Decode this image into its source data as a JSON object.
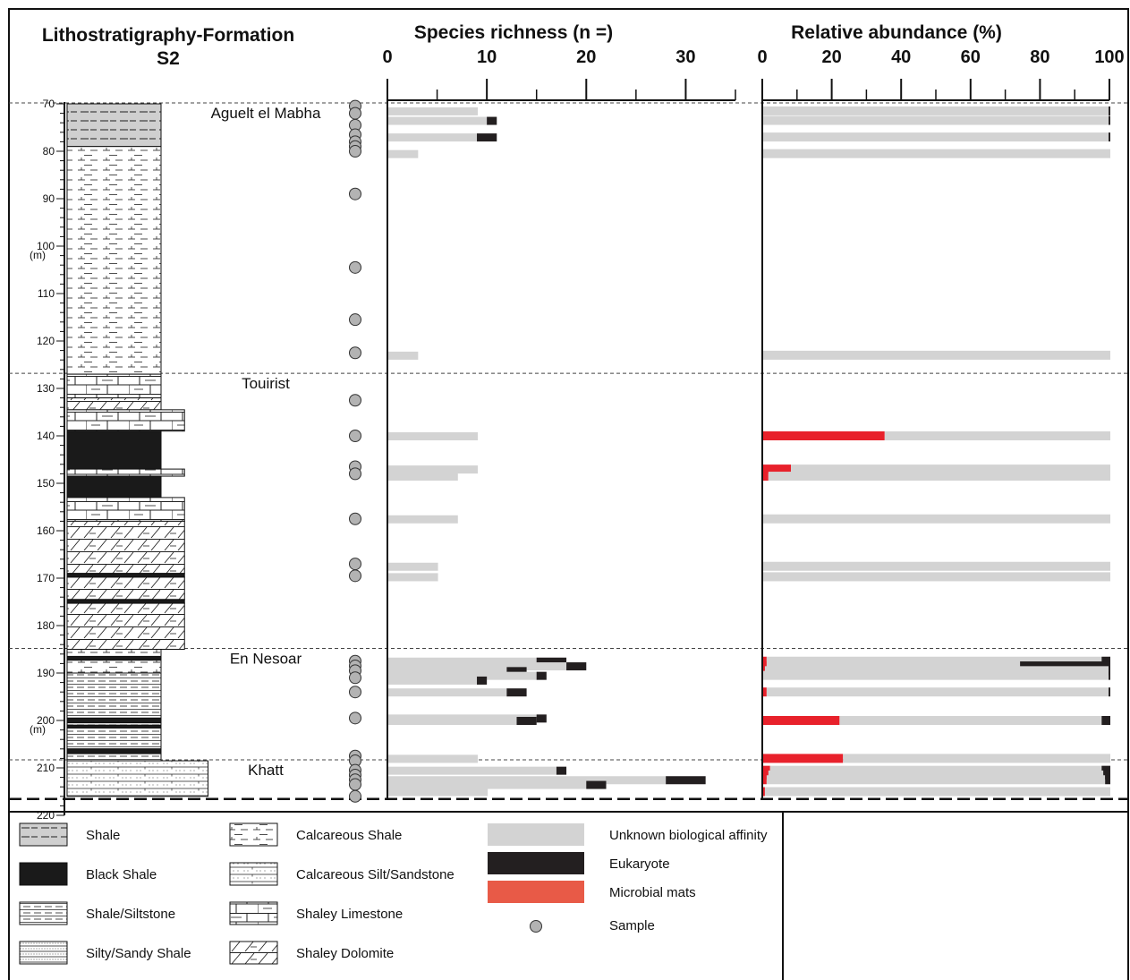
{
  "header": {
    "litho_title": "Lithostratigraphy-Formation",
    "section": "S2",
    "species_title": "Species richness (n =)",
    "abundance_title": "Relative abundance (%)"
  },
  "depth_axis": {
    "ticks": [
      "70",
      "80",
      "90",
      "100",
      "110",
      "120",
      "130",
      "140",
      "150",
      "160",
      "170",
      "180",
      "190",
      "200",
      "210",
      "220"
    ],
    "unit_labels": [
      {
        "at": 100,
        "text": "(m)"
      },
      {
        "at": 200,
        "text": "(m)"
      }
    ]
  },
  "colors": {
    "unknown": "#d3d3d3",
    "eukaryote": "#231f20",
    "microbial": "#e8212b",
    "microbial_legend": "#e85a47",
    "sample": "#b3b3b3"
  },
  "formations": [
    {
      "name": "Aguelt el Mabha",
      "top": 70
    },
    {
      "name": "Touirist",
      "top": 127
    },
    {
      "name": "En Nesoar",
      "top": 185
    },
    {
      "name": "Khatt",
      "top": 208.5
    }
  ],
  "formation_boundaries": [
    70,
    127,
    185,
    208.5
  ],
  "section_base": 216,
  "lithology": [
    {
      "top": 70,
      "bottom": 79,
      "type": "shale",
      "width": 1
    },
    {
      "top": 79,
      "bottom": 127,
      "type": "calcareous-shale",
      "width": 1
    },
    {
      "top": 127,
      "bottom": 132,
      "type": "shaley-limestone",
      "width": 1
    },
    {
      "top": 132,
      "bottom": 134.5,
      "type": "shaley-dolomite",
      "width": 1
    },
    {
      "top": 134.5,
      "bottom": 139,
      "type": "shaley-limestone",
      "width": 1.25
    },
    {
      "top": 139,
      "bottom": 147,
      "type": "black-shale",
      "width": 1
    },
    {
      "top": 147,
      "bottom": 148.5,
      "type": "shaley-limestone",
      "width": 1.25
    },
    {
      "top": 148.5,
      "bottom": 153,
      "type": "black-shale",
      "width": 1
    },
    {
      "top": 153,
      "bottom": 158,
      "type": "shaley-limestone",
      "width": 1.25
    },
    {
      "top": 158,
      "bottom": 169,
      "type": "shaley-dolomite",
      "width": 1.25
    },
    {
      "top": 169,
      "bottom": 169.8,
      "type": "black-shale",
      "width": 1.25
    },
    {
      "top": 169.8,
      "bottom": 174.5,
      "type": "shaley-dolomite",
      "width": 1.25
    },
    {
      "top": 174.5,
      "bottom": 175.3,
      "type": "black-shale",
      "width": 1.25
    },
    {
      "top": 175.3,
      "bottom": 185,
      "type": "shaley-dolomite",
      "width": 1.25
    },
    {
      "top": 185,
      "bottom": 186.5,
      "type": "calcareous-shale",
      "width": 1
    },
    {
      "top": 186.5,
      "bottom": 187.3,
      "type": "black-shale",
      "width": 1
    },
    {
      "top": 187.3,
      "bottom": 190,
      "type": "calcareous-shale",
      "width": 1
    },
    {
      "top": 190,
      "bottom": 199.5,
      "type": "shale-siltstone",
      "width": 1
    },
    {
      "top": 199.5,
      "bottom": 200.5,
      "type": "black-shale",
      "width": 1
    },
    {
      "top": 200.5,
      "bottom": 201,
      "type": "shale-siltstone",
      "width": 1
    },
    {
      "top": 201,
      "bottom": 201.6,
      "type": "black-shale",
      "width": 1
    },
    {
      "top": 201.6,
      "bottom": 206,
      "type": "shale-siltstone",
      "width": 1
    },
    {
      "top": 206,
      "bottom": 207,
      "type": "black-shale",
      "width": 1
    },
    {
      "top": 207,
      "bottom": 208.5,
      "type": "shale-siltstone",
      "width": 1
    },
    {
      "top": 208.5,
      "bottom": 216,
      "type": "calcareous-silt-sandstone",
      "width": 1.5
    }
  ],
  "chart_data": [
    {
      "type": "bar",
      "orientation": "horizontal",
      "title": "Species richness (n =)",
      "xlim": [
        0,
        35
      ],
      "x_ticks": [
        "0",
        "10",
        "20",
        "30"
      ],
      "ylim": [
        70,
        220
      ],
      "y_unit": "m",
      "series": [
        {
          "name": "Unknown biological affinity",
          "key": "unknown"
        },
        {
          "name": "Eukaryote",
          "key": "eukaryote"
        }
      ],
      "samples": [
        {
          "depth": 71.5,
          "unknown": 9,
          "eukaryote": 0
        },
        {
          "depth": 73.5,
          "unknown": 10,
          "eukaryote": 1
        },
        {
          "depth": 77,
          "unknown": 9,
          "eukaryote": 2
        },
        {
          "depth": 80.5,
          "unknown": 3,
          "eukaryote": 0
        },
        {
          "depth": 123,
          "unknown": 3,
          "eukaryote": 0
        },
        {
          "depth": 140,
          "unknown": 9,
          "eukaryote": 0
        },
        {
          "depth": 147,
          "unknown": 9,
          "eukaryote": 0
        },
        {
          "depth": 148.5,
          "unknown": 7,
          "eukaryote": 0
        },
        {
          "depth": 157.5,
          "unknown": 7,
          "eukaryote": 0
        },
        {
          "depth": 167.5,
          "unknown": 5,
          "eukaryote": 0
        },
        {
          "depth": 169.7,
          "unknown": 5,
          "eukaryote": 0
        },
        {
          "depth": 187.5,
          "unknown": 15,
          "eukaryote": 3
        },
        {
          "depth": 188.5,
          "unknown": 18,
          "eukaryote": 2
        },
        {
          "depth": 189.5,
          "unknown": 12,
          "eukaryote": 2
        },
        {
          "depth": 190.5,
          "unknown": 15,
          "eukaryote": 1
        },
        {
          "depth": 191.5,
          "unknown": 9,
          "eukaryote": 1
        },
        {
          "depth": 194,
          "unknown": 12,
          "eukaryote": 2
        },
        {
          "depth": 199.5,
          "unknown": 15,
          "eukaryote": 1
        },
        {
          "depth": 200,
          "unknown": 13,
          "eukaryote": 2
        },
        {
          "depth": 208,
          "unknown": 9,
          "eukaryote": 0
        },
        {
          "depth": 210.5,
          "unknown": 17,
          "eukaryote": 1
        },
        {
          "depth": 212.5,
          "unknown": 28,
          "eukaryote": 4
        },
        {
          "depth": 213.5,
          "unknown": 20,
          "eukaryote": 2
        },
        {
          "depth": 215,
          "unknown": 10,
          "eukaryote": 0
        }
      ]
    },
    {
      "type": "bar",
      "orientation": "horizontal",
      "stacked": true,
      "title": "Relative abundance (%)",
      "xlim": [
        0,
        100
      ],
      "x_ticks": [
        "0",
        "20",
        "40",
        "60",
        "80",
        "100"
      ],
      "ylim": [
        70,
        220
      ],
      "y_unit": "m",
      "series": [
        {
          "name": "Microbial mats",
          "key": "microbial"
        },
        {
          "name": "Unknown biological affinity",
          "key": "unknown"
        },
        {
          "name": "Eukaryote",
          "key": "eukaryote"
        }
      ],
      "samples": [
        {
          "depth": 71.5,
          "microbial": 0,
          "unknown": 99.5,
          "eukaryote": 0.5
        },
        {
          "depth": 73.5,
          "microbial": 0,
          "unknown": 99.5,
          "eukaryote": 0.5
        },
        {
          "depth": 77,
          "microbial": 0,
          "unknown": 99.5,
          "eukaryote": 0.5
        },
        {
          "depth": 80.5,
          "microbial": 0,
          "unknown": 100,
          "eukaryote": 0
        },
        {
          "depth": 123,
          "microbial": 0,
          "unknown": 100,
          "eukaryote": 0
        },
        {
          "depth": 140,
          "microbial": 35,
          "unknown": 65,
          "eukaryote": 0
        },
        {
          "depth": 147,
          "microbial": 8,
          "unknown": 92,
          "eukaryote": 0
        },
        {
          "depth": 148.5,
          "microbial": 1.5,
          "unknown": 98.5,
          "eukaryote": 0
        },
        {
          "depth": 157.5,
          "microbial": 0,
          "unknown": 100,
          "eukaryote": 0
        },
        {
          "depth": 167.5,
          "microbial": 0,
          "unknown": 100,
          "eukaryote": 0
        },
        {
          "depth": 169.7,
          "microbial": 0,
          "unknown": 100,
          "eukaryote": 0
        },
        {
          "depth": 187.5,
          "microbial": 1,
          "unknown": 96.5,
          "eukaryote": 2.5
        },
        {
          "depth": 188.5,
          "microbial": 1,
          "unknown": 73,
          "eukaryote": 26
        },
        {
          "depth": 189.5,
          "microbial": 0.5,
          "unknown": 99,
          "eukaryote": 0.5
        },
        {
          "depth": 190.5,
          "microbial": 0,
          "unknown": 99.5,
          "eukaryote": 0.5
        },
        {
          "depth": 194,
          "microbial": 1,
          "unknown": 98.5,
          "eukaryote": 0.5
        },
        {
          "depth": 200,
          "microbial": 22,
          "unknown": 75.5,
          "eukaryote": 2.5
        },
        {
          "depth": 208,
          "microbial": 23,
          "unknown": 77,
          "eukaryote": 0
        },
        {
          "depth": 210.5,
          "microbial": 2,
          "unknown": 95.5,
          "eukaryote": 2.5
        },
        {
          "depth": 211.5,
          "microbial": 1.5,
          "unknown": 96.5,
          "eukaryote": 2
        },
        {
          "depth": 212.5,
          "microbial": 1,
          "unknown": 97.5,
          "eukaryote": 1.5
        },
        {
          "depth": 215,
          "microbial": 0.5,
          "unknown": 99.5,
          "eukaryote": 0
        }
      ]
    }
  ],
  "sample_depths": [
    70.5,
    72,
    74.5,
    76.5,
    78,
    79,
    80,
    89,
    104.5,
    115.5,
    122.5,
    132.5,
    140,
    146.5,
    148,
    157.5,
    167,
    169.5,
    187.5,
    188.5,
    189.5,
    191,
    194,
    199.5,
    207.5,
    208.5,
    210.5,
    211.5,
    212.5,
    213.5,
    216
  ],
  "legend": {
    "lithology": [
      {
        "key": "shale",
        "label": "Shale"
      },
      {
        "key": "black-shale",
        "label": "Black Shale"
      },
      {
        "key": "shale-siltstone",
        "label": "Shale/Siltstone"
      },
      {
        "key": "silty-sandy-shale",
        "label": "Silty/Sandy Shale"
      },
      {
        "key": "calcareous-shale",
        "label": "Calcareous Shale"
      },
      {
        "key": "calcareous-silt-sandstone",
        "label": "Calcareous Silt/Sandstone"
      },
      {
        "key": "shaley-limestone",
        "label": "Shaley Limestone"
      },
      {
        "key": "shaley-dolomite",
        "label": "Shaley Dolomite"
      }
    ],
    "affinity": [
      {
        "key": "unknown",
        "label": "Unknown biological affinity"
      },
      {
        "key": "eukaryote",
        "label": "Eukaryote"
      },
      {
        "key": "microbial",
        "label": "Microbial mats"
      },
      {
        "key": "sample",
        "label": "Sample"
      }
    ]
  }
}
